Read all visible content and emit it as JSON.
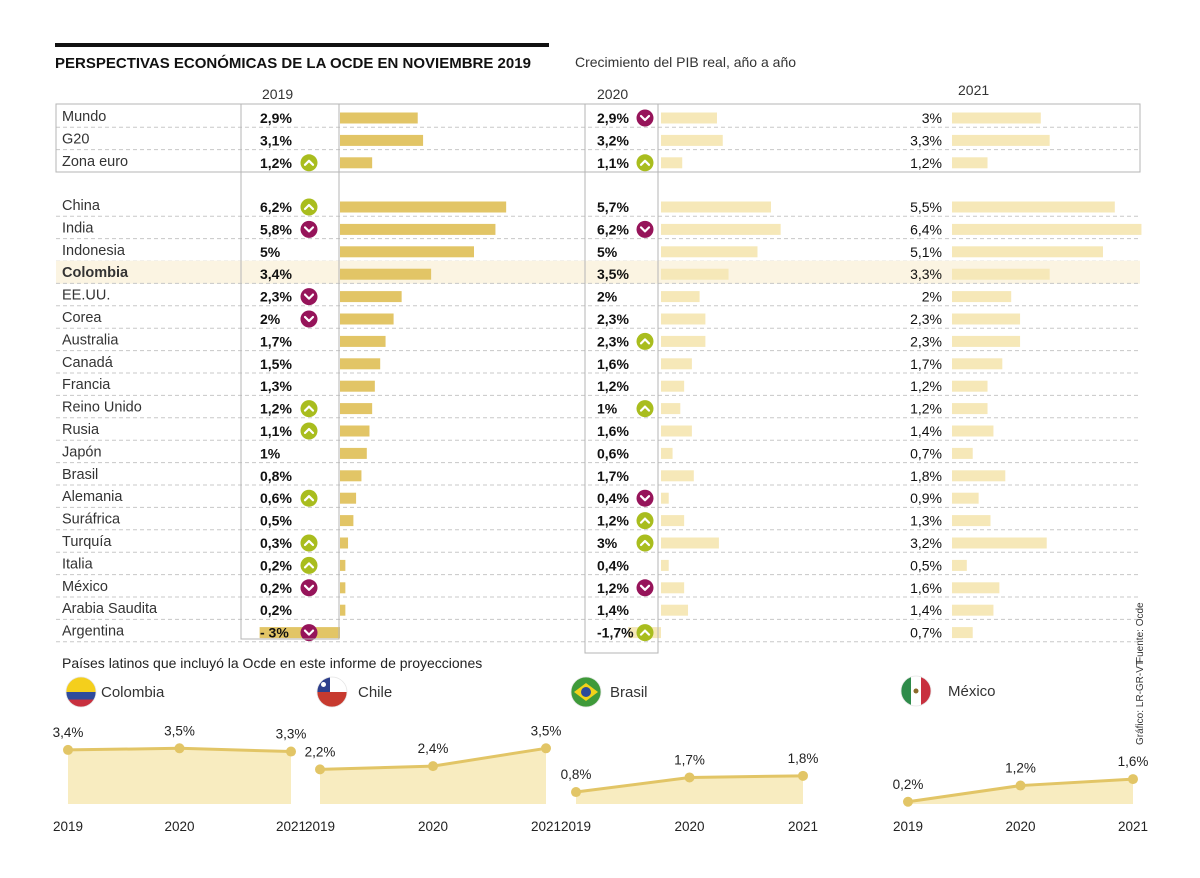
{
  "header": {
    "title": "PERSPECTIVAS ECONÓMICAS DE LA OCDE EN NOVIEMBRE 2019",
    "subtitle": "Crecimiento del PIB real, año a año"
  },
  "years": [
    "2019",
    "2020",
    "2021"
  ],
  "colors": {
    "bar_2019": "#e2c566",
    "bar_2020": "#f6e8b8",
    "bar_2021": "#f6e8b8",
    "arrow_up": "#a9bd1e",
    "arrow_down": "#96145a",
    "highlight_row": "#fbf4e2",
    "area_fill": "#f8ecc0",
    "area_line": "#e2c566"
  },
  "chart_data": {
    "type": "bar",
    "title": "PERSPECTIVAS ECONÓMICAS DE LA OCDE EN NOVIEMBRE 2019",
    "subtitle": "Crecimiento del PIB real, año a año",
    "series_names": [
      "2019",
      "2020",
      "2021"
    ],
    "groups": [
      {
        "rows": [
          {
            "name": "Mundo",
            "v": [
              2.9,
              2.9,
              3.0
            ],
            "l": [
              "2,9%",
              "2,9%",
              "3%"
            ],
            "a": [
              "",
              "down",
              ""
            ]
          },
          {
            "name": "G20",
            "v": [
              3.1,
              3.2,
              3.3
            ],
            "l": [
              "3,1%",
              "3,2%",
              "3,3%"
            ],
            "a": [
              "",
              "",
              ""
            ]
          },
          {
            "name": "Zona euro",
            "v": [
              1.2,
              1.1,
              1.2
            ],
            "l": [
              "1,2%",
              "1,1%",
              "1,2%"
            ],
            "a": [
              "up",
              "up",
              ""
            ]
          }
        ]
      },
      {
        "rows": [
          {
            "name": "China",
            "v": [
              6.2,
              5.7,
              5.5
            ],
            "l": [
              "6,2%",
              "5,7%",
              "5,5%"
            ],
            "a": [
              "up",
              "",
              ""
            ]
          },
          {
            "name": "India",
            "v": [
              5.8,
              6.2,
              6.4
            ],
            "l": [
              "5,8%",
              "6,2%",
              "6,4%"
            ],
            "a": [
              "down",
              "down",
              ""
            ]
          },
          {
            "name": "Indonesia",
            "v": [
              5.0,
              5.0,
              5.1
            ],
            "l": [
              "5%",
              "5%",
              "5,1%"
            ],
            "a": [
              "",
              "",
              ""
            ]
          },
          {
            "name": "Colombia",
            "v": [
              3.4,
              3.5,
              3.3
            ],
            "l": [
              "3,4%",
              "3,5%",
              "3,3%"
            ],
            "a": [
              "",
              "",
              ""
            ],
            "highlight": true
          },
          {
            "name": "EE.UU.",
            "v": [
              2.3,
              2.0,
              2.0
            ],
            "l": [
              "2,3%",
              "2%",
              "2%"
            ],
            "a": [
              "down",
              "",
              ""
            ]
          },
          {
            "name": "Corea",
            "v": [
              2.0,
              2.3,
              2.3
            ],
            "l": [
              "2%",
              "2,3%",
              "2,3%"
            ],
            "a": [
              "down",
              "",
              ""
            ]
          },
          {
            "name": "Australia",
            "v": [
              1.7,
              2.3,
              2.3
            ],
            "l": [
              "1,7%",
              "2,3%",
              "2,3%"
            ],
            "a": [
              "",
              "up",
              ""
            ]
          },
          {
            "name": "Canadá",
            "v": [
              1.5,
              1.6,
              1.7
            ],
            "l": [
              "1,5%",
              "1,6%",
              "1,7%"
            ],
            "a": [
              "",
              "",
              ""
            ]
          },
          {
            "name": "Francia",
            "v": [
              1.3,
              1.2,
              1.2
            ],
            "l": [
              "1,3%",
              "1,2%",
              "1,2%"
            ],
            "a": [
              "",
              "",
              ""
            ]
          },
          {
            "name": "Reino Unido",
            "v": [
              1.2,
              1.0,
              1.2
            ],
            "l": [
              "1,2%",
              "1%",
              "1,2%"
            ],
            "a": [
              "up",
              "up",
              ""
            ]
          },
          {
            "name": "Rusia",
            "v": [
              1.1,
              1.6,
              1.4
            ],
            "l": [
              "1,1%",
              "1,6%",
              "1,4%"
            ],
            "a": [
              "up",
              "",
              ""
            ]
          },
          {
            "name": "Japón",
            "v": [
              1.0,
              0.6,
              0.7
            ],
            "l": [
              "1%",
              "0,6%",
              "0,7%"
            ],
            "a": [
              "",
              "",
              ""
            ]
          },
          {
            "name": "Brasil",
            "v": [
              0.8,
              1.7,
              1.8
            ],
            "l": [
              "0,8%",
              "1,7%",
              "1,8%"
            ],
            "a": [
              "",
              "",
              ""
            ]
          },
          {
            "name": "Alemania",
            "v": [
              0.6,
              0.4,
              0.9
            ],
            "l": [
              "0,6%",
              "0,4%",
              "0,9%"
            ],
            "a": [
              "up",
              "down",
              ""
            ]
          },
          {
            "name": "Suráfrica",
            "v": [
              0.5,
              1.2,
              1.3
            ],
            "l": [
              "0,5%",
              "1,2%",
              "1,3%"
            ],
            "a": [
              "",
              "up",
              ""
            ]
          },
          {
            "name": "Turquía",
            "v": [
              0.3,
              3.0,
              3.2
            ],
            "l": [
              "0,3%",
              "3%",
              "3,2%"
            ],
            "a": [
              "up",
              "up",
              ""
            ]
          },
          {
            "name": "Italia",
            "v": [
              0.2,
              0.4,
              0.5
            ],
            "l": [
              "0,2%",
              "0,4%",
              "0,5%"
            ],
            "a": [
              "up",
              "",
              ""
            ]
          },
          {
            "name": "México",
            "v": [
              0.2,
              1.2,
              1.6
            ],
            "l": [
              "0,2%",
              "1,2%",
              "1,6%"
            ],
            "a": [
              "down",
              "down",
              ""
            ]
          },
          {
            "name": "Arabia Saudita",
            "v": [
              0.2,
              1.4,
              1.4
            ],
            "l": [
              "0,2%",
              "1,4%",
              "1,4%"
            ],
            "a": [
              "",
              "",
              ""
            ]
          },
          {
            "name": "Argentina",
            "v": [
              -3.0,
              -1.7,
              0.7
            ],
            "l": [
              "- 3%",
              "-1,7%",
              "0,7%"
            ],
            "a": [
              "down",
              "up",
              ""
            ]
          }
        ]
      }
    ]
  },
  "latin": {
    "title": "Países latinos que incluyó la Ocde en este informe de proyecciones",
    "x": [
      "2019",
      "2020",
      "2021"
    ],
    "countries": [
      {
        "name": "Colombia",
        "values": [
          3.4,
          3.5,
          3.3
        ],
        "labels": [
          "3,4%",
          "3,5%",
          "3,3%"
        ]
      },
      {
        "name": "Chile",
        "values": [
          2.2,
          2.4,
          3.5
        ],
        "labels": [
          "2,2%",
          "2,4%",
          "3,5%"
        ]
      },
      {
        "name": "Brasil",
        "values": [
          0.8,
          1.7,
          1.8
        ],
        "labels": [
          "0,8%",
          "1,7%",
          "1,8%"
        ]
      },
      {
        "name": "México",
        "values": [
          0.2,
          1.2,
          1.6
        ],
        "labels": [
          "0,2%",
          "1,2%",
          "1,6%"
        ]
      }
    ]
  },
  "credits": {
    "source": "Fuente: Ocde",
    "graphic": "Gráfico: LR-GR-VT"
  }
}
